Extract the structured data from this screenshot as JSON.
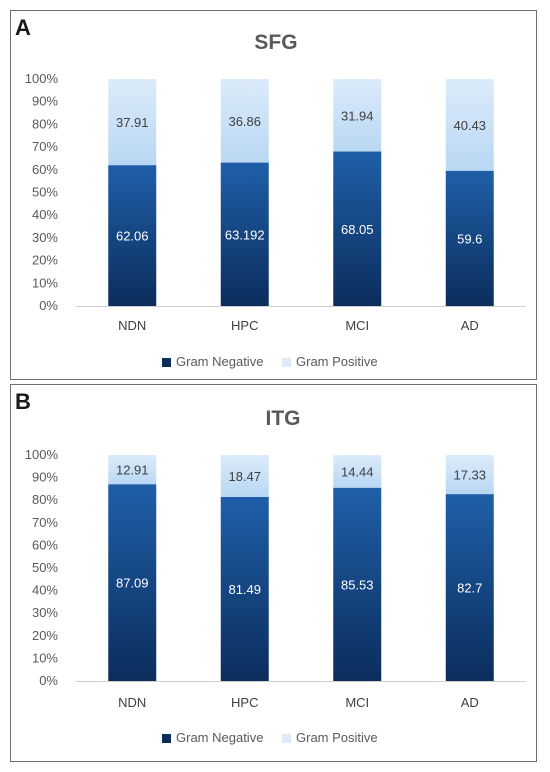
{
  "chart_data": [
    {
      "panel": "A",
      "type": "bar",
      "stacked": true,
      "title": "SFG",
      "categories": [
        "NDN",
        "HPC",
        "MCI",
        "AD"
      ],
      "series": [
        {
          "name": "Gram Negative",
          "values": [
            62.06,
            63.192,
            68.05,
            59.6
          ],
          "labels": [
            "62.06",
            "63.192",
            "68.05",
            "59.6"
          ]
        },
        {
          "name": "Gram Positive",
          "values": [
            37.91,
            36.86,
            31.94,
            40.43
          ],
          "labels": [
            "37.91",
            "36.86",
            "31.94",
            "40.43"
          ]
        }
      ],
      "yticks": [
        "0%",
        "10%",
        "20%",
        "30%",
        "40%",
        "50%",
        "60%",
        "70%",
        "80%",
        "90%",
        "100%"
      ],
      "ylim": [
        0,
        100
      ],
      "legend": "bottom",
      "grid": false
    },
    {
      "panel": "B",
      "type": "bar",
      "stacked": true,
      "title": "ITG",
      "categories": [
        "NDN",
        "HPC",
        "MCI",
        "AD"
      ],
      "series": [
        {
          "name": "Gram Negative",
          "values": [
            87.09,
            81.49,
            85.53,
            82.7
          ],
          "labels": [
            "87.09",
            "81.49",
            "85.53",
            "82.7"
          ]
        },
        {
          "name": "Gram Positive",
          "values": [
            12.91,
            18.47,
            14.44,
            17.33
          ],
          "labels": [
            "12.91",
            "18.47",
            "14.44",
            "17.33"
          ]
        }
      ],
      "yticks": [
        "0%",
        "10%",
        "20%",
        "30%",
        "40%",
        "50%",
        "60%",
        "70%",
        "80%",
        "90%",
        "100%"
      ],
      "ylim": [
        0,
        100
      ],
      "legend": "bottom",
      "grid": false
    }
  ],
  "colors": {
    "gram_negative_top": "#1f5fa8",
    "gram_negative_bottom": "#0b2d5c",
    "gram_positive_top": "#dcebfa",
    "gram_positive_bottom": "#b9d7f4"
  }
}
